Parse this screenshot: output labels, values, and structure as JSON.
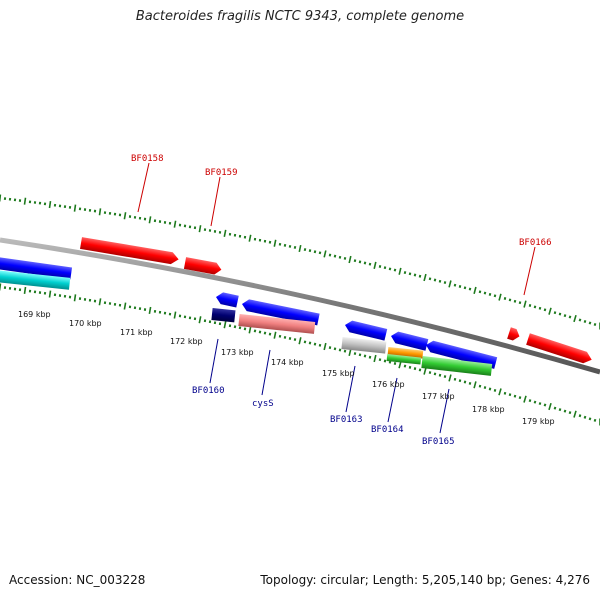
{
  "title": "Bacteroides fragilis NCTC 9343, complete genome",
  "footer": {
    "accession": "Accession: NC_003228",
    "topology": "Topology: circular; Length: 5,205,140 bp; Genes: 4,276"
  },
  "colors": {
    "backbone": "#888888",
    "tick": "#1e7a1e",
    "forward_label": "#cc0000",
    "reverse_label": "#00008b"
  },
  "scale_labels": [
    "169 kbp",
    "170 kbp",
    "171 kbp",
    "172 kbp",
    "173 kbp",
    "174 kbp",
    "175 kbp",
    "176 kbp",
    "177 kbp",
    "178 kbp",
    "179 kbp"
  ],
  "gene_labels": {
    "top": [
      "BF0158",
      "BF0159",
      "BF0166"
    ],
    "bottom": [
      "BF0160",
      "cysS",
      "BF0163",
      "BF0164",
      "BF0165"
    ]
  }
}
